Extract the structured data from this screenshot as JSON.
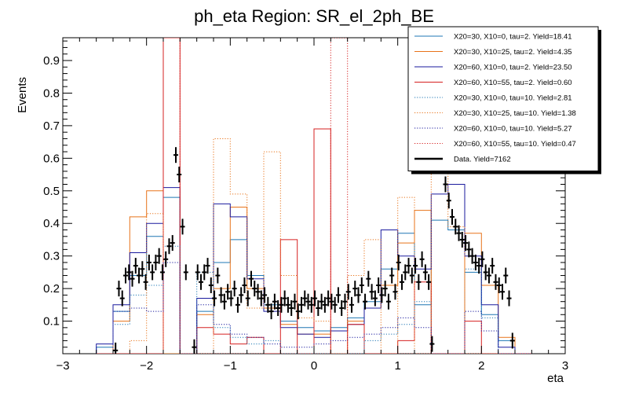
{
  "chart_data": {
    "type": "histogram",
    "title": "ph_eta Region: SR_el_2ph_BE",
    "xlabel": "eta",
    "ylabel": "Events",
    "xlim": [
      -3.0,
      3.0
    ],
    "ylim": [
      0.0,
      0.97
    ],
    "xticks": [
      "−3",
      "−2",
      "−1",
      "0",
      "1",
      "2",
      "3"
    ],
    "xtick_values": [
      -3,
      -2,
      -1,
      0,
      1,
      2,
      3
    ],
    "yticks": [
      "0.1",
      "0.2",
      "0.3",
      "0.4",
      "0.5",
      "0.6",
      "0.7",
      "0.8",
      "0.9"
    ],
    "ytick_values": [
      0.1,
      0.2,
      0.3,
      0.4,
      0.5,
      0.6,
      0.7,
      0.8,
      0.9
    ],
    "bin_edges": [
      -2.6,
      -2.4,
      -2.2,
      -2.0,
      -1.8,
      -1.6,
      -1.4,
      -1.2,
      -1.0,
      -0.8,
      -0.6,
      -0.4,
      -0.2,
      0.0,
      0.2,
      0.4,
      0.6,
      0.8,
      1.0,
      1.2,
      1.4,
      1.6,
      1.8,
      2.0,
      2.2,
      2.4,
      2.6
    ],
    "series": [
      {
        "name": "X20=30, X10=0, tau=2. Yield=18.41",
        "color": "#1f77b4",
        "style": "solid",
        "values": [
          0.02,
          0.13,
          0.24,
          0.36,
          0.48,
          0.0,
          0.13,
          0.28,
          0.35,
          0.24,
          0.15,
          0.1,
          0.08,
          0.07,
          0.08,
          0.11,
          0.16,
          0.26,
          0.37,
          0.15,
          0.41,
          0.38,
          0.25,
          0.12,
          0.04,
          0.0
        ]
      },
      {
        "name": "X20=30, X10=25, tau=2. Yield=4.35",
        "color": "#e8731a",
        "style": "solid",
        "values": [
          0.0,
          0.1,
          0.42,
          0.5,
          0.0,
          0.0,
          0.12,
          0.2,
          0.45,
          0.2,
          0.14,
          0.09,
          0.06,
          0.06,
          0.07,
          0.1,
          0.14,
          0.21,
          0.34,
          0.44,
          0.0,
          0.0,
          0.37,
          0.21,
          0.05,
          0.0
        ]
      },
      {
        "name": "X20=60, X10=0, tau=2. Yield=23.50",
        "color": "#1a1a9e",
        "style": "solid",
        "values": [
          0.03,
          0.15,
          0.31,
          0.4,
          0.51,
          0.0,
          0.17,
          0.46,
          0.42,
          0.23,
          0.13,
          0.08,
          0.06,
          0.05,
          0.07,
          0.09,
          0.14,
          0.38,
          0.3,
          0.26,
          0.49,
          0.52,
          0.3,
          0.15,
          0.02,
          0.0
        ]
      },
      {
        "name": "X20=60, X10=55, tau=2. Yield=0.60",
        "color": "#d62020",
        "style": "solid",
        "values": [
          0.0,
          0.0,
          0.0,
          0.0,
          0.97,
          0.0,
          0.08,
          0.06,
          0.03,
          0.05,
          0.0,
          0.35,
          0.0,
          0.69,
          0.0,
          0.09,
          0.0,
          0.0,
          0.04,
          0.22,
          0.0,
          0.0,
          0.1,
          0.0,
          0.0,
          0.0
        ]
      },
      {
        "name": "X20=30, X10=0, tau=10. Yield=2.81",
        "color": "#1f77b4",
        "style": "dotted",
        "values": [
          0.0,
          0.09,
          0.18,
          0.21,
          0.33,
          0.0,
          0.25,
          0.08,
          0.05,
          0.03,
          0.04,
          0.0,
          0.0,
          0.0,
          0.0,
          0.0,
          0.04,
          0.06,
          0.09,
          0.16,
          0.0,
          0.0,
          0.26,
          0.11,
          0.0,
          0.0
        ]
      },
      {
        "name": "X20=30, X10=25, tau=10. Yield=1.38",
        "color": "#e8731a",
        "style": "dotted",
        "values": [
          0.0,
          0.0,
          0.04,
          0.43,
          0.0,
          0.0,
          0.0,
          0.66,
          0.49,
          0.14,
          0.62,
          0.24,
          0.11,
          0.1,
          0.0,
          0.24,
          0.35,
          0.0,
          0.48,
          0.0,
          0.56,
          0.39,
          0.0,
          0.0,
          0.0,
          0.0
        ]
      },
      {
        "name": "X20=60, X10=0, tau=10. Yield=5.27",
        "color": "#1a1a9e",
        "style": "dotted",
        "values": [
          0.0,
          0.13,
          0.14,
          0.13,
          0.28,
          0.0,
          0.15,
          0.09,
          0.06,
          0.05,
          0.03,
          0.02,
          0.02,
          0.03,
          0.04,
          0.05,
          0.06,
          0.08,
          0.11,
          0.08,
          0.0,
          0.0,
          0.13,
          0.07,
          0.0,
          0.0
        ]
      },
      {
        "name": "X20=60, X10=55, tau=10. Yield=0.47",
        "color": "#d62020",
        "style": "dotted",
        "values": [
          0.0,
          0.0,
          0.0,
          0.0,
          0.97,
          0.0,
          0.0,
          0.0,
          0.0,
          0.0,
          0.0,
          0.0,
          0.0,
          0.0,
          0.97,
          0.0,
          0.0,
          0.0,
          0.0,
          0.0,
          0.0,
          0.0,
          0.0,
          0.0,
          0.0,
          0.0
        ]
      }
    ],
    "data_series": {
      "name": "Data. Yield=7162",
      "color": "#000000",
      "x": [
        -2.37,
        -2.33,
        -2.29,
        -2.25,
        -2.21,
        -2.17,
        -2.13,
        -2.09,
        -2.05,
        -2.01,
        -1.97,
        -1.93,
        -1.89,
        -1.85,
        -1.81,
        -1.77,
        -1.73,
        -1.69,
        -1.65,
        -1.61,
        -1.57,
        -1.53,
        -1.43,
        -1.39,
        -1.35,
        -1.31,
        -1.27,
        -1.23,
        -1.19,
        -1.15,
        -1.11,
        -1.07,
        -1.03,
        -0.99,
        -0.95,
        -0.91,
        -0.87,
        -0.83,
        -0.79,
        -0.75,
        -0.71,
        -0.67,
        -0.63,
        -0.59,
        -0.55,
        -0.51,
        -0.47,
        -0.43,
        -0.39,
        -0.35,
        -0.31,
        -0.27,
        -0.23,
        -0.19,
        -0.15,
        -0.11,
        -0.07,
        -0.03,
        0.01,
        0.05,
        0.09,
        0.13,
        0.17,
        0.21,
        0.25,
        0.29,
        0.33,
        0.37,
        0.41,
        0.45,
        0.49,
        0.53,
        0.57,
        0.61,
        0.65,
        0.69,
        0.73,
        0.77,
        0.81,
        0.85,
        0.89,
        0.93,
        0.97,
        1.01,
        1.05,
        1.09,
        1.13,
        1.17,
        1.21,
        1.25,
        1.29,
        1.33,
        1.37,
        1.41,
        1.57,
        1.61,
        1.65,
        1.69,
        1.73,
        1.77,
        1.81,
        1.85,
        1.89,
        1.93,
        1.97,
        2.01,
        2.05,
        2.09,
        2.13,
        2.17,
        2.21,
        2.25,
        2.29,
        2.33,
        2.37
      ],
      "y": [
        0.01,
        0.2,
        0.17,
        0.24,
        0.25,
        0.23,
        0.27,
        0.24,
        0.26,
        0.22,
        0.28,
        0.25,
        0.28,
        0.3,
        0.25,
        0.29,
        0.33,
        0.34,
        0.61,
        0.55,
        0.39,
        0.25,
        0.02,
        0.25,
        0.22,
        0.25,
        0.27,
        0.21,
        0.17,
        0.24,
        0.18,
        0.16,
        0.19,
        0.17,
        0.2,
        0.15,
        0.18,
        0.21,
        0.17,
        0.23,
        0.2,
        0.19,
        0.17,
        0.18,
        0.15,
        0.13,
        0.16,
        0.14,
        0.15,
        0.17,
        0.15,
        0.14,
        0.16,
        0.13,
        0.15,
        0.17,
        0.16,
        0.15,
        0.17,
        0.14,
        0.16,
        0.15,
        0.17,
        0.16,
        0.15,
        0.18,
        0.14,
        0.16,
        0.19,
        0.15,
        0.2,
        0.18,
        0.21,
        0.16,
        0.23,
        0.19,
        0.17,
        0.21,
        0.18,
        0.2,
        0.16,
        0.24,
        0.19,
        0.28,
        0.22,
        0.25,
        0.27,
        0.24,
        0.27,
        0.22,
        0.29,
        0.25,
        0.22,
        0.03,
        0.52,
        0.47,
        0.42,
        0.39,
        0.37,
        0.35,
        0.34,
        0.32,
        0.3,
        0.28,
        0.27,
        0.29,
        0.25,
        0.24,
        0.27,
        0.22,
        0.21,
        0.19,
        0.24,
        0.17,
        0.04
      ]
    },
    "legend_position": "top-right",
    "grid": false
  }
}
